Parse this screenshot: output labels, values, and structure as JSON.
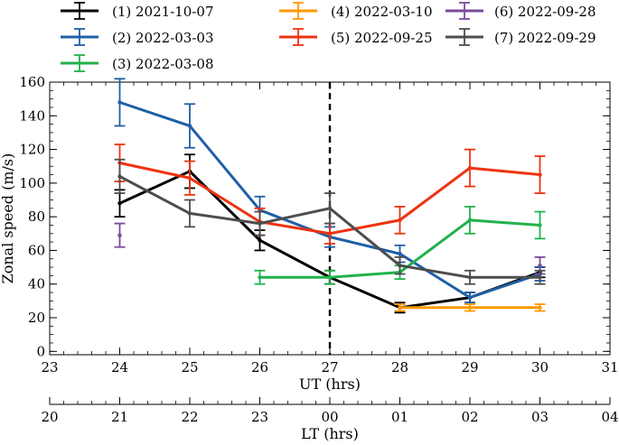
{
  "chart_data": {
    "type": "line",
    "ylabel": "Zonal speed (m/s)",
    "xlabel": "UT (hrs)",
    "secondary_xlabel": "LT (hrs)",
    "xlim": [
      23,
      31
    ],
    "ylim": [
      -2,
      160
    ],
    "x_ticks": [
      23,
      24,
      25,
      26,
      27,
      28,
      29,
      30,
      31
    ],
    "x_tick_labels": [
      "23",
      "24",
      "25",
      "26",
      "27",
      "28",
      "29",
      "30",
      "31"
    ],
    "y_ticks": [
      0,
      20,
      40,
      60,
      80,
      100,
      120,
      140,
      160
    ],
    "y_tick_labels": [
      "0",
      "20",
      "40",
      "60",
      "80",
      "100",
      "120",
      "140",
      "160"
    ],
    "lt_ticks": [
      23,
      24,
      25,
      26,
      27,
      28,
      29,
      30,
      31
    ],
    "lt_tick_labels": [
      "20",
      "21",
      "22",
      "23",
      "00",
      "01",
      "02",
      "03",
      "04"
    ],
    "vline_x": 27,
    "series": [
      {
        "name": "(1) 2021-10-07",
        "color": "#000000",
        "x": [
          24,
          25,
          26,
          27,
          28,
          29,
          30
        ],
        "y": [
          88,
          107,
          66,
          44,
          26,
          32,
          47
        ],
        "err": [
          8,
          10,
          6,
          4,
          3,
          3,
          3
        ]
      },
      {
        "name": "(2) 2022-03-03",
        "color": "#1f5fa6",
        "x": [
          24,
          25,
          26,
          27,
          28,
          29,
          30
        ],
        "y": [
          148,
          134,
          84,
          68,
          58,
          32,
          46
        ],
        "err": [
          14,
          13,
          8,
          6,
          5,
          3,
          4
        ]
      },
      {
        "name": "(3) 2022-03-08",
        "color": "#22b14c",
        "x": [
          26,
          27,
          28,
          29,
          30
        ],
        "y": [
          44,
          44,
          47,
          78,
          75
        ],
        "err": [
          4,
          4,
          4,
          8,
          8
        ]
      },
      {
        "name": "(4) 2022-03-10",
        "color": "#ff9900",
        "x": [
          28,
          29,
          30
        ],
        "y": [
          26,
          26,
          26
        ],
        "err": [
          2,
          2,
          2
        ]
      },
      {
        "name": "(5) 2022-09-25",
        "color": "#ee3311",
        "x": [
          24,
          25,
          26,
          27,
          28,
          29,
          30
        ],
        "y": [
          112,
          103,
          77,
          70,
          78,
          109,
          105
        ],
        "err": [
          11,
          10,
          8,
          6,
          8,
          11,
          11
        ]
      },
      {
        "name": "(6) 2022-09-28",
        "color": "#7b4a9b",
        "x": [
          24,
          30
        ],
        "y": [
          69,
          51
        ],
        "err": [
          7,
          5
        ]
      },
      {
        "name": "(7) 2022-09-29",
        "color": "#4d4d4d",
        "x": [
          24,
          25,
          26,
          27,
          28,
          29,
          30
        ],
        "y": [
          104,
          82,
          76,
          85,
          51,
          44,
          44
        ],
        "err": [
          10,
          8,
          7,
          9,
          5,
          4,
          4
        ]
      }
    ]
  }
}
